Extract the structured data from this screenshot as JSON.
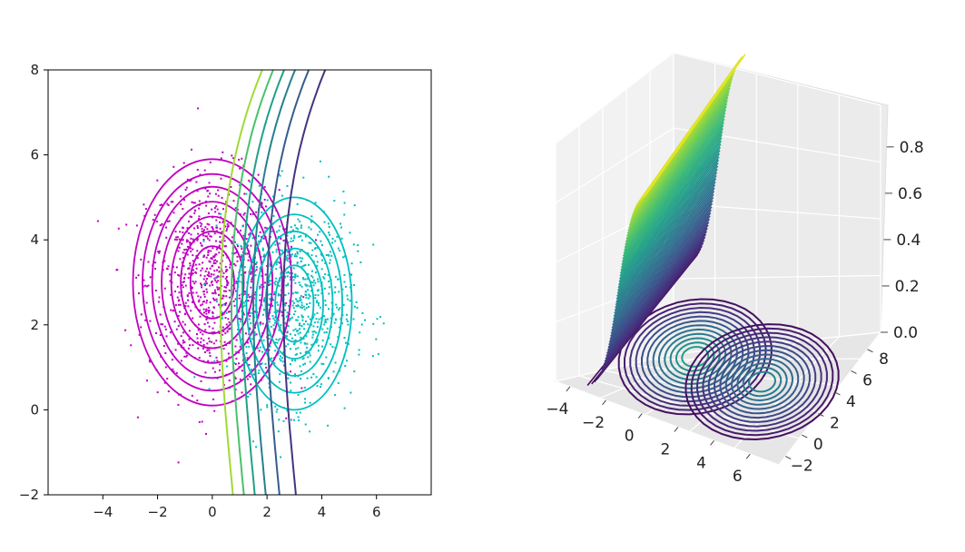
{
  "chart_data": [
    {
      "type": "scatter",
      "xlim": [
        -6,
        8
      ],
      "ylim": [
        -2,
        8
      ],
      "x_ticks": [
        "−4",
        "−2",
        "0",
        "2",
        "4",
        "6"
      ],
      "y_ticks": [
        "−2",
        "0",
        "2",
        "4",
        "6",
        "8"
      ],
      "grid": false,
      "series": [
        {
          "color": "#bf00bf",
          "center": [
            0,
            3
          ],
          "spread": [
            1.2,
            1.25
          ],
          "contour_radii": [
            [
              2.9,
              2.9
            ],
            [
              2.55,
              2.55
            ],
            [
              2.2,
              2.25
            ],
            [
              1.85,
              1.9
            ],
            [
              1.5,
              1.55
            ],
            [
              1.15,
              1.2
            ],
            [
              0.8,
              0.85
            ]
          ]
        },
        {
          "color": "#00bfbf",
          "center": [
            3,
            2.5
          ],
          "spread": [
            1.1,
            1.15
          ],
          "contour_radii": [
            [
              2.1,
              2.5
            ],
            [
              1.75,
              2.1
            ],
            [
              1.4,
              1.7
            ],
            [
              1.05,
              1.3
            ],
            [
              0.7,
              0.9
            ]
          ]
        }
      ],
      "decision_boundaries": [
        {
          "color": "#a0da39",
          "x0": 0.3
        },
        {
          "color": "#4ac16d",
          "x0": 0.7
        },
        {
          "color": "#1fa187",
          "x0": 1.1
        },
        {
          "color": "#277f8e",
          "x0": 1.5
        },
        {
          "color": "#365c8d",
          "x0": 2.0
        },
        {
          "color": "#46337e",
          "x0": 2.6
        }
      ]
    },
    {
      "type": "surface3d",
      "x_ticks": [
        "−4",
        "−2",
        "0",
        "2",
        "4",
        "6"
      ],
      "y_ticks": [
        "−2",
        "0",
        "2",
        "4",
        "6",
        "8"
      ],
      "z_ticks": [
        "0.0",
        "0.2",
        "0.4",
        "0.6",
        "0.8"
      ],
      "zlim": [
        0,
        1
      ],
      "colormap": "viridis"
    }
  ]
}
